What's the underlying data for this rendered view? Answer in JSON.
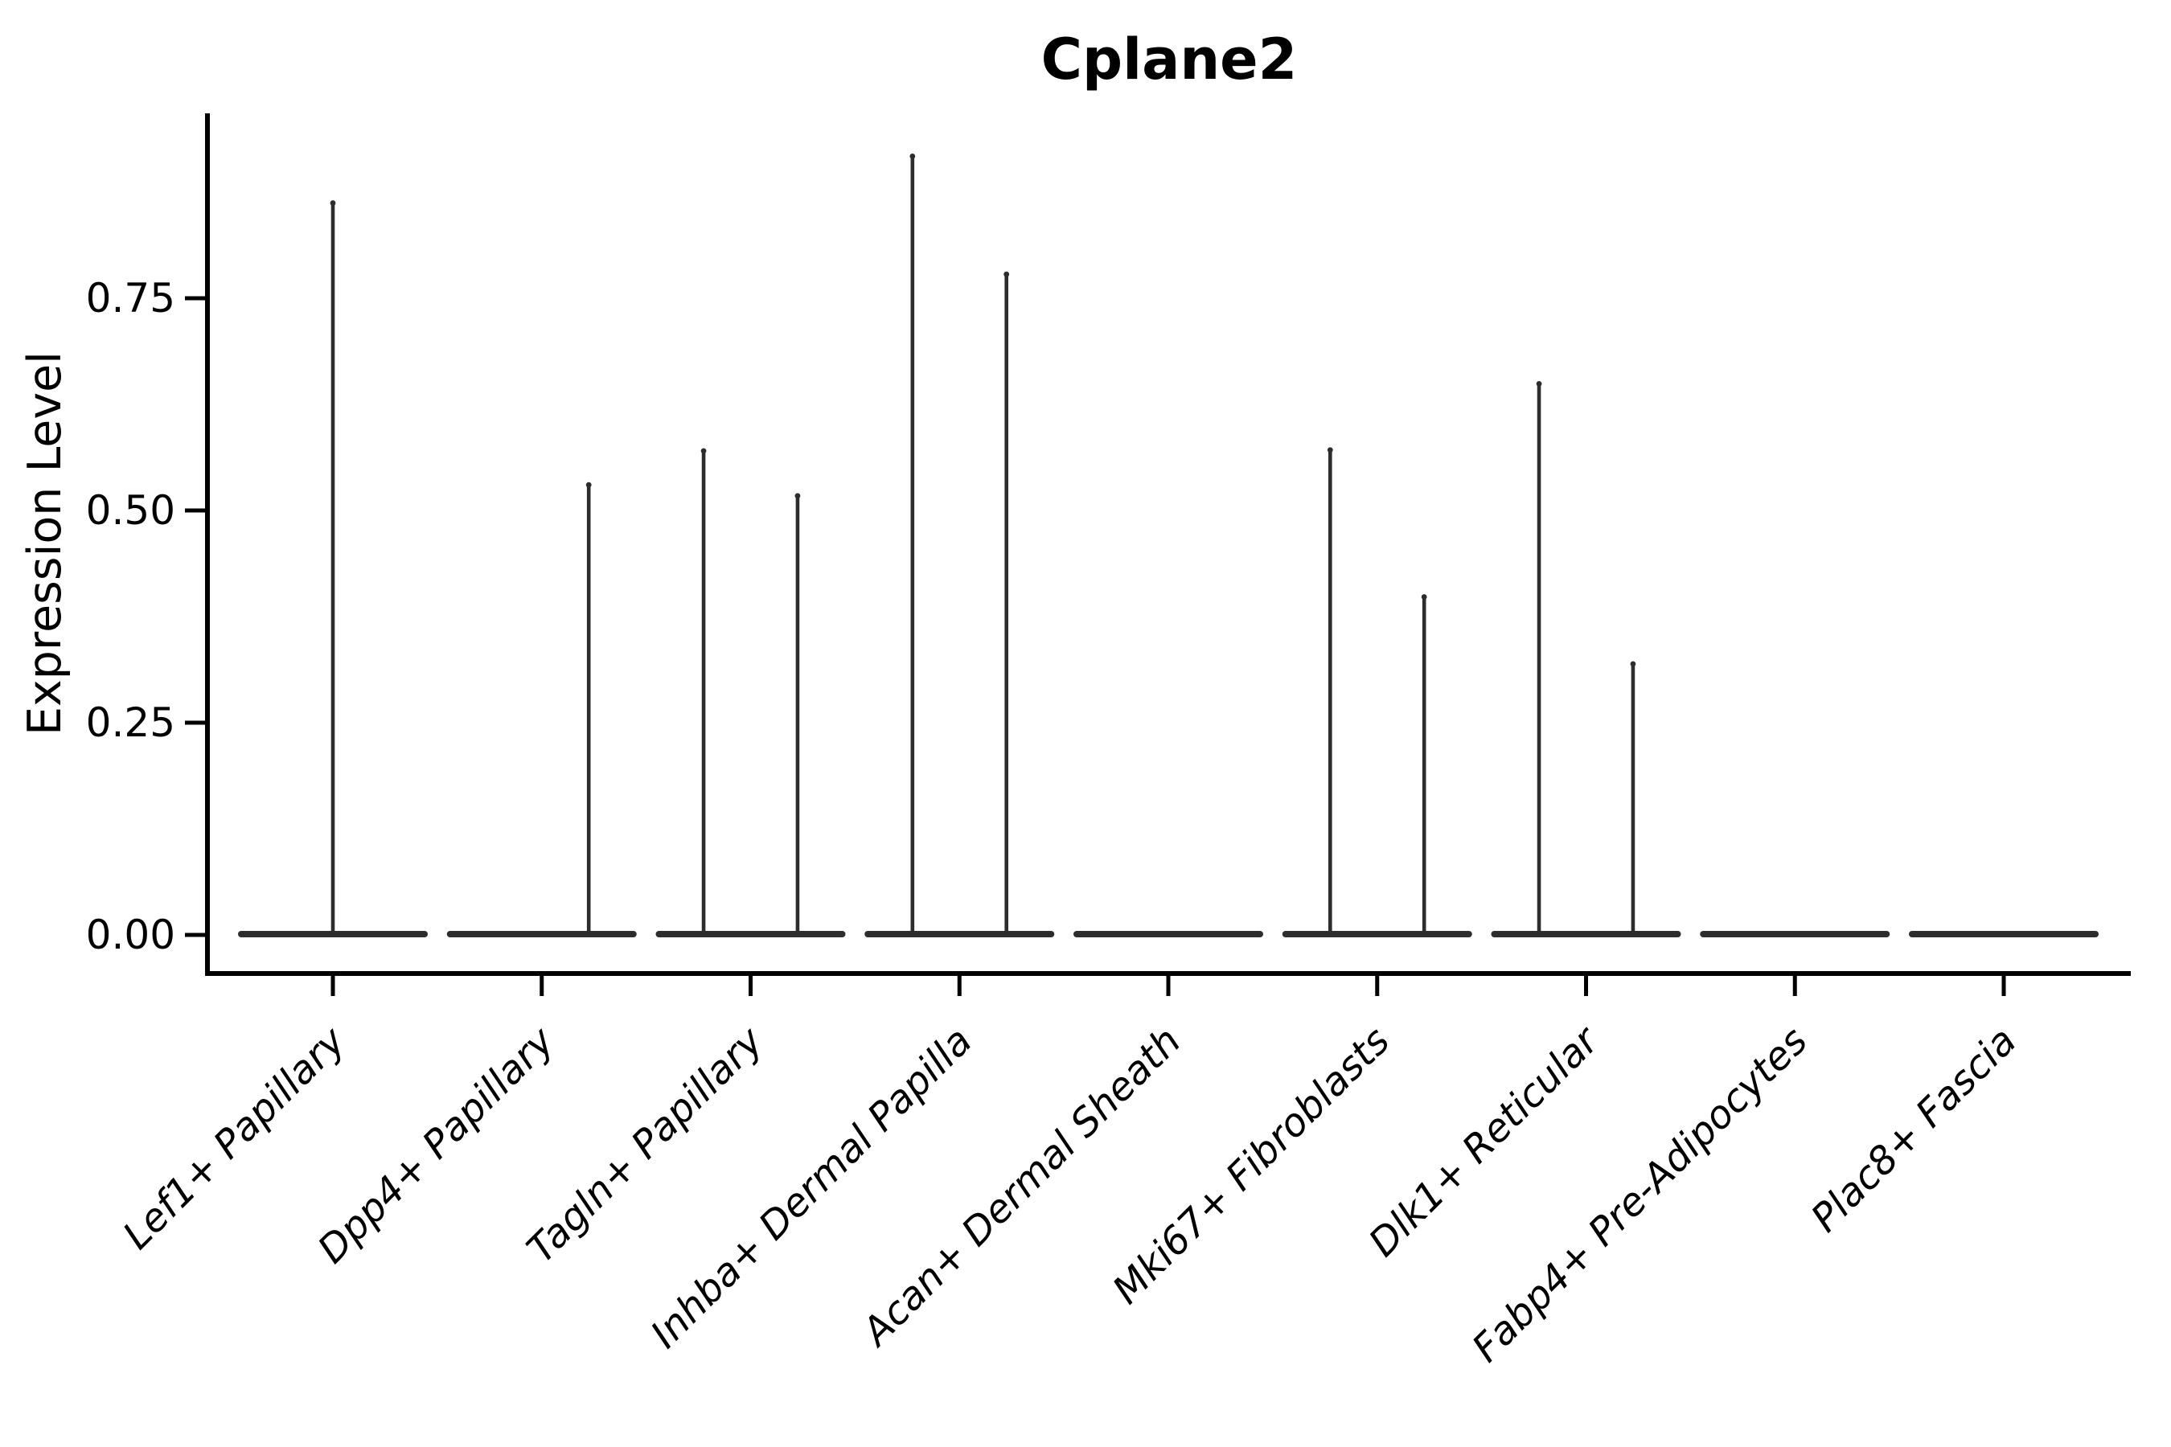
{
  "title": "Cplane2",
  "chart_data": {
    "type": "violin",
    "title": "Cplane2",
    "xlabel": "",
    "ylabel": "Expression Level",
    "grid": false,
    "legend": null,
    "ylim": [
      -0.045,
      0.971
    ],
    "yticks": [
      {
        "value": 0.0,
        "label": "0.00"
      },
      {
        "value": 0.25,
        "label": "0.25"
      },
      {
        "value": 0.5,
        "label": "0.50"
      },
      {
        "value": 0.75,
        "label": "0.75"
      }
    ],
    "categories": [
      "Lef1+ Papillary",
      "Dpp4+ Papillary",
      "Tagln+ Papillary",
      "Inhba+ Dermal Papilla",
      "Acan+ Dermal Sheath",
      "Mki67+ Fibroblasts",
      "Dlk1+ Reticular",
      "Fabp4+ Pre-Adipocytes",
      "Plac8+ Fascia"
    ],
    "violins": [
      {
        "category": "Lef1+ Papillary",
        "body_at_zero": true,
        "spikes": [
          {
            "dx_frac": 0.0,
            "max": 0.866
          }
        ]
      },
      {
        "category": "Dpp4+ Papillary",
        "body_at_zero": true,
        "spikes": [
          {
            "dx_frac": 0.225,
            "max": 0.534
          }
        ]
      },
      {
        "category": "Tagln+ Papillary",
        "body_at_zero": true,
        "spikes": [
          {
            "dx_frac": -0.225,
            "max": 0.574
          },
          {
            "dx_frac": 0.225,
            "max": 0.521
          }
        ]
      },
      {
        "category": "Inhba+ Dermal Papilla",
        "body_at_zero": true,
        "spikes": [
          {
            "dx_frac": -0.225,
            "max": 0.921
          },
          {
            "dx_frac": 0.225,
            "max": 0.782
          }
        ]
      },
      {
        "category": "Acan+ Dermal Sheath",
        "body_at_zero": true,
        "spikes": []
      },
      {
        "category": "Mki67+ Fibroblasts",
        "body_at_zero": true,
        "spikes": [
          {
            "dx_frac": -0.225,
            "max": 0.575
          },
          {
            "dx_frac": 0.225,
            "max": 0.402
          }
        ]
      },
      {
        "category": "Dlk1+ Reticular",
        "body_at_zero": true,
        "spikes": [
          {
            "dx_frac": -0.225,
            "max": 0.653
          },
          {
            "dx_frac": 0.225,
            "max": 0.323
          }
        ]
      },
      {
        "category": "Fabp4+ Pre-Adipocytes",
        "body_at_zero": true,
        "spikes": []
      },
      {
        "category": "Plac8+ Fascia",
        "body_at_zero": true,
        "spikes": []
      }
    ],
    "colors": {
      "violin": "#2d2d2d",
      "axis": "#000000",
      "text": "#000000",
      "background": "#ffffff"
    }
  }
}
